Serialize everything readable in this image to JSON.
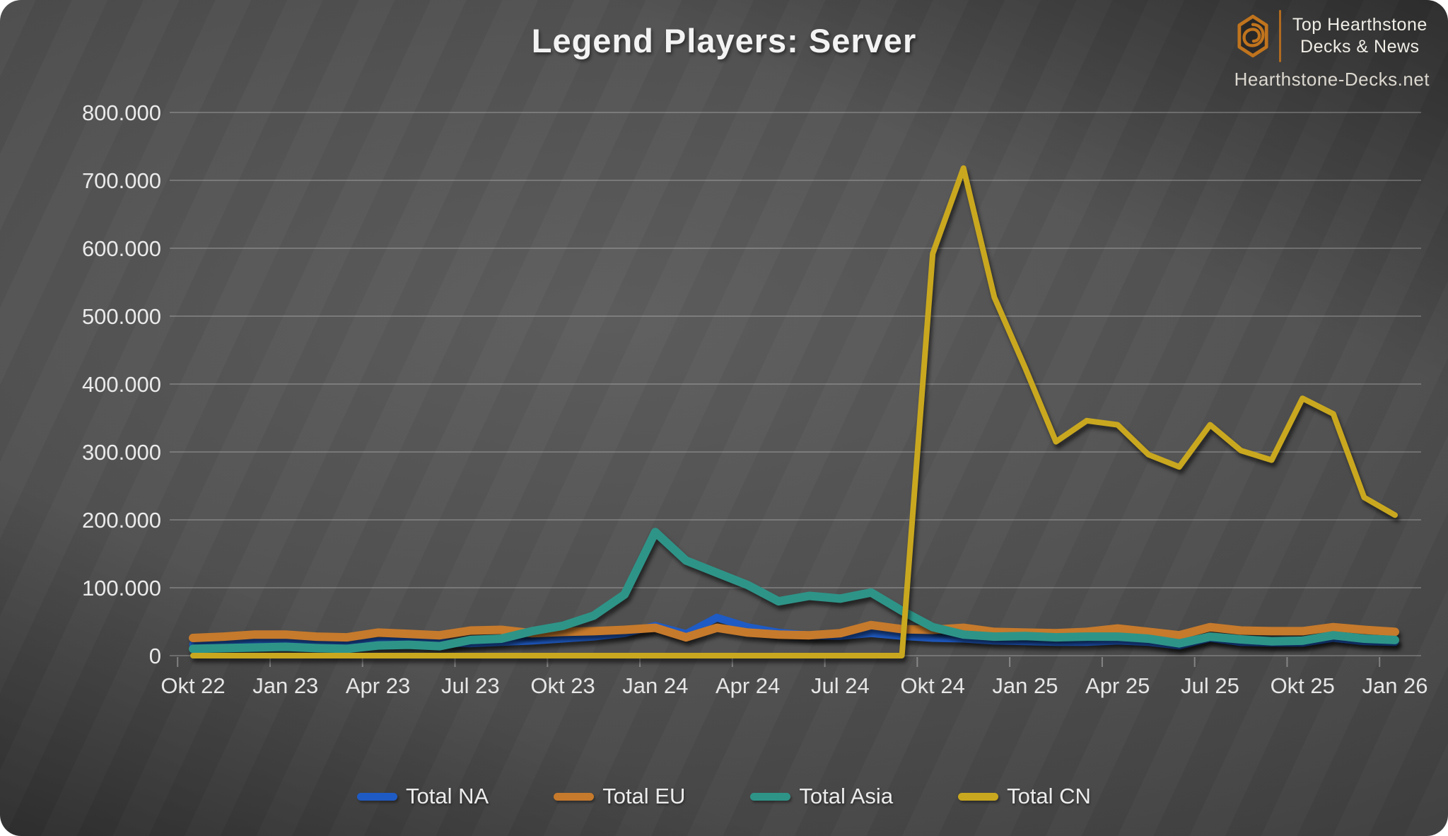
{
  "header": {
    "title": "Legend Players: Server"
  },
  "logo": {
    "icon": "hearthstone-swirl-icon",
    "accent": "#c0741d",
    "line1": "Top Hearthstone",
    "line2": "Decks & News",
    "site": "Hearthstone-Decks.net"
  },
  "chart_data": {
    "type": "line",
    "title": "Legend Players: Server",
    "xlabel": "",
    "ylabel": "",
    "ylim": [
      0,
      800000
    ],
    "y_tick_step": 100000,
    "y_tick_labels": [
      "800.000",
      "700.000",
      "600.000",
      "500.000",
      "400.000",
      "300.000",
      "200.000",
      "100.000",
      "0"
    ],
    "x_tick_labels": [
      "Okt 22",
      "Jan 23",
      "Apr 23",
      "Jul 23",
      "Okt 23",
      "Jan 24",
      "Apr 24",
      "Jul 24",
      "Okt 24",
      "Jan 25",
      "Apr 25",
      "Jul 25",
      "Okt 25",
      "Jan 26"
    ],
    "x_tick_month_indices": [
      0,
      3,
      6,
      9,
      12,
      15,
      18,
      21,
      24,
      27,
      30,
      33,
      36,
      39
    ],
    "months_total": 40,
    "grid": true,
    "legend_position": "bottom",
    "grid_color": "rgba(220,220,220,0.26)",
    "axis_text_color": "#e6e6e6",
    "series": [
      {
        "name": "Total NA",
        "color": "#1f5bc4",
        "values": [
          17000,
          19000,
          22000,
          23000,
          20000,
          18000,
          21000,
          22000,
          19000,
          18000,
          20000,
          22000,
          25000,
          28000,
          33000,
          44000,
          32000,
          56000,
          42000,
          34000,
          30000,
          29000,
          33000,
          29000,
          26000,
          25000,
          22000,
          21000,
          20000,
          20000,
          22000,
          20000,
          15000,
          26000,
          20000,
          19000,
          19000,
          26000,
          21000,
          20000
        ]
      },
      {
        "name": "Total EU",
        "color": "#c67a2c",
        "values": [
          26000,
          28000,
          31000,
          31000,
          28000,
          27000,
          34000,
          32000,
          30000,
          37000,
          38000,
          33000,
          35000,
          36000,
          38000,
          41000,
          27000,
          41000,
          34000,
          31000,
          30000,
          33000,
          45000,
          39000,
          38000,
          41000,
          35000,
          34000,
          33000,
          35000,
          40000,
          35000,
          30000,
          42000,
          37000,
          36000,
          36000,
          42000,
          38000,
          35000
        ]
      },
      {
        "name": "Total Asia",
        "color": "#2e9488",
        "values": [
          10000,
          11000,
          12000,
          13000,
          11000,
          10000,
          15000,
          16000,
          14000,
          23000,
          25000,
          36000,
          44000,
          59000,
          90000,
          182000,
          140000,
          122000,
          104000,
          80000,
          88000,
          84000,
          93000,
          66000,
          42000,
          31000,
          28000,
          29000,
          27000,
          28000,
          28000,
          25000,
          18000,
          28000,
          24000,
          21000,
          22000,
          30000,
          25000,
          23000
        ]
      },
      {
        "name": "Total CN",
        "color": "#c9a81f",
        "values": [
          0,
          0,
          0,
          0,
          0,
          0,
          0,
          0,
          0,
          0,
          0,
          0,
          0,
          0,
          0,
          0,
          0,
          0,
          0,
          0,
          0,
          0,
          0,
          0,
          592000,
          718000,
          528000,
          424000,
          315000,
          346000,
          340000,
          296000,
          278000,
          340000,
          302000,
          288000,
          379000,
          356000,
          233000,
          207000
        ]
      }
    ]
  }
}
